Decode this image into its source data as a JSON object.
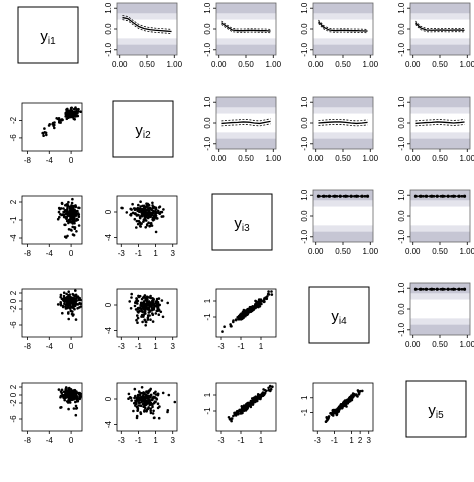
{
  "chart_data": {
    "type": "scatter",
    "title": "",
    "grid_size": 5,
    "variables": [
      {
        "name": "y",
        "sub": "i1"
      },
      {
        "name": "y",
        "sub": "i2"
      },
      {
        "name": "y",
        "sub": "i3"
      },
      {
        "name": "y",
        "sub": "i4"
      },
      {
        "name": "y",
        "sub": "i5"
      }
    ],
    "upper_panel": {
      "type": "line",
      "x_ticks": [
        "0.00",
        "0.50",
        "1.00"
      ],
      "x_tick_values": [
        0,
        0.5,
        1
      ],
      "y_ticks": [
        "1.0",
        "0.0",
        "-1.0"
      ],
      "y_tick_values": [
        1,
        0,
        -1
      ],
      "xlim": [
        -0.05,
        1.05
      ],
      "ylim": [
        -1.25,
        1.25
      ],
      "band_colors": [
        "#c6c6d4",
        "#e4e4ec",
        "#ffffff"
      ],
      "x": [
        0.05,
        0.15,
        0.25,
        0.35,
        0.45,
        0.55,
        0.65,
        0.75,
        0.85,
        0.95
      ],
      "curves": {
        "1-2": [
          0.55,
          0.5,
          0.3,
          0.12,
          0.02,
          -0.03,
          -0.06,
          -0.08,
          -0.1,
          -0.12
        ],
        "1-3": [
          0.3,
          0.12,
          -0.05,
          -0.08,
          -0.08,
          -0.07,
          -0.07,
          -0.08,
          -0.08,
          -0.1
        ],
        "1-4": [
          0.35,
          0.08,
          -0.05,
          -0.08,
          -0.07,
          -0.07,
          -0.08,
          -0.08,
          -0.09,
          -0.1
        ],
        "1-5": [
          0.3,
          0.05,
          -0.05,
          -0.06,
          -0.05,
          -0.05,
          -0.06,
          -0.05,
          -0.05,
          -0.06
        ],
        "2-3": [
          -0.02,
          0.0,
          0.02,
          0.03,
          0.05,
          0.04,
          0.0,
          -0.02,
          0.03,
          0.08
        ],
        "2-4": [
          0.0,
          0.02,
          0.04,
          0.05,
          0.05,
          0.03,
          0.0,
          -0.02,
          0.0,
          0.03
        ],
        "2-5": [
          -0.02,
          0.0,
          0.02,
          0.03,
          0.05,
          0.04,
          0.02,
          0.0,
          0.02,
          0.05
        ],
        "3-4": [
          0.95,
          0.95,
          0.95,
          0.95,
          0.95,
          0.95,
          0.95,
          0.95,
          0.95,
          0.95
        ],
        "3-5": [
          0.95,
          0.95,
          0.95,
          0.95,
          0.95,
          0.95,
          0.95,
          0.95,
          0.95,
          0.95
        ],
        "4-5": [
          0.95,
          0.95,
          0.95,
          0.95,
          0.95,
          0.95,
          0.95,
          0.95,
          0.95,
          0.95
        ]
      },
      "ci_halfwidth": {
        "1-2": 0.1,
        "1-3": 0.08,
        "1-4": 0.08,
        "1-5": 0.08,
        "2-3": 0.12,
        "2-4": 0.12,
        "2-5": 0.12,
        "3-4": 0.04,
        "3-5": 0.04,
        "4-5": 0.04
      }
    },
    "lower_panel": {
      "type": "scatter",
      "x_axes": {
        "1": {
          "ticks": [
            "-8",
            "-4",
            "0"
          ],
          "values": [
            -8,
            -4,
            0
          ],
          "lim": [
            -9,
            2
          ]
        },
        "2": {
          "ticks": [
            "-3",
            "-1",
            "1",
            "3"
          ],
          "values": [
            -3,
            -1,
            1,
            3
          ],
          "lim": [
            -3.5,
            3.5
          ]
        },
        "3": {
          "ticks": [
            "-3",
            "-1",
            "1"
          ],
          "values": [
            -3,
            -1,
            1
          ],
          "lim": [
            -3.5,
            2.5
          ]
        },
        "4": {
          "ticks": [
            "-3",
            "-1",
            "1",
            "2",
            "3"
          ],
          "values": [
            -3,
            -1,
            1,
            2,
            3
          ],
          "lim": [
            -3.5,
            3.5
          ]
        }
      },
      "y_axes": {
        "2": {
          "ticks": [
            "-2",
            "-6"
          ],
          "values": [
            -2,
            -6
          ],
          "lim": [
            -9,
            2
          ]
        },
        "3": {
          "ticks": [
            "2",
            "-1",
            "-4"
          ],
          "values": [
            2,
            -1,
            -4
          ],
          "lim": [
            -5,
            3
          ]
        },
        "4": {
          "ticks": [
            "2",
            "0",
            "-2",
            "-6"
          ],
          "values": [
            2,
            0,
            -2,
            -6
          ],
          "lim": [
            -9,
            3
          ]
        },
        "5": {
          "ticks": [
            "2",
            "0",
            "-2",
            "-6"
          ],
          "values": [
            2,
            0,
            -2,
            -6
          ],
          "lim": [
            -9,
            3
          ]
        }
      },
      "column_y_axes": {
        "2": {
          "ticks": [
            "0",
            "-4"
          ],
          "values": [
            0,
            -4
          ],
          "lim": [
            -5,
            2.5
          ]
        },
        "3": {
          "ticks": [
            "1",
            "-1"
          ],
          "values": [
            1,
            -1
          ],
          "lim": [
            -3.5,
            2.5
          ]
        },
        "4": {
          "ticks": [
            "1",
            "-1"
          ],
          "values": [
            1,
            -1
          ],
          "lim": [
            -3.5,
            3
          ]
        }
      },
      "pairs": {
        "2-1": {
          "shape": "spike"
        },
        "3-1": {
          "shape": "blob"
        },
        "4-1": {
          "shape": "blob"
        },
        "5-1": {
          "shape": "blob"
        },
        "3-2": {
          "shape": "blob_low"
        },
        "4-2": {
          "shape": "blob_low"
        },
        "5-2": {
          "shape": "blob_low"
        },
        "4-3": {
          "shape": "diagonal"
        },
        "5-3": {
          "shape": "diagonal"
        },
        "5-4": {
          "shape": "diagonal"
        }
      }
    }
  }
}
